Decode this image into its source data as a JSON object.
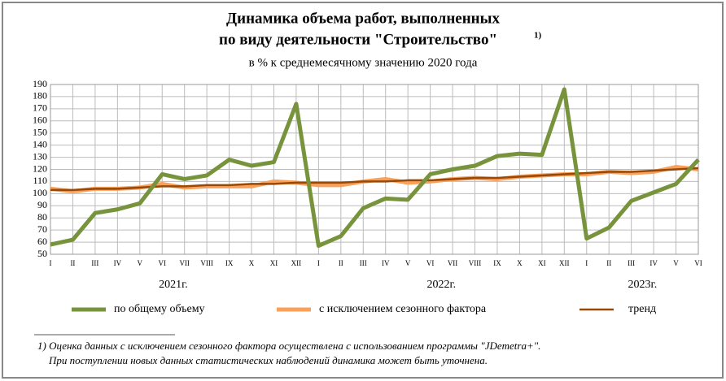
{
  "chart_data": {
    "type": "line",
    "title": [
      "Динамика объема работ, выполненных",
      "по виду деятельности \"Строительство\""
    ],
    "title_note": "1)",
    "subtitle": "в % к среднемесячному значению 2020 года",
    "categories": [
      "I",
      "II",
      "III",
      "IV",
      "V",
      "VI",
      "VII",
      "VIII",
      "IX",
      "X",
      "XI",
      "XII",
      "I",
      "II",
      "III",
      "IV",
      "V",
      "VI",
      "VII",
      "VIII",
      "IX",
      "X",
      "XI",
      "XII",
      "I",
      "II",
      "III",
      "IV",
      "V",
      "VI"
    ],
    "year_labels": [
      "2021г.",
      "2022г.",
      "2023г."
    ],
    "series": [
      {
        "name": "по общему объему",
        "color": "#77933c",
        "values": [
          58,
          62,
          84,
          87,
          92,
          116,
          112,
          115,
          128,
          123,
          126,
          174,
          57,
          65,
          88,
          96,
          95,
          116,
          120,
          123,
          131,
          133,
          132,
          186,
          63,
          72,
          94,
          101,
          108,
          128
        ]
      },
      {
        "name": "с исключением сезонного фактора",
        "color": "#f9a05b",
        "values": [
          104,
          102,
          104,
          104,
          105,
          108,
          105,
          106,
          106,
          106,
          110,
          109,
          107,
          107,
          110,
          112,
          109,
          110,
          112,
          113,
          112,
          114,
          115,
          116,
          116,
          118,
          117,
          118,
          122,
          120
        ]
      },
      {
        "name": "тренд",
        "color": "#984807",
        "values": [
          103,
          103,
          104,
          104,
          105,
          106,
          106,
          107,
          107,
          108,
          108,
          109,
          109,
          109,
          110,
          110,
          111,
          111,
          112,
          113,
          113,
          114,
          115,
          116,
          117,
          118,
          118,
          119,
          120,
          121
        ]
      }
    ],
    "ylim": [
      50,
      190
    ],
    "yticks": [
      50,
      60,
      70,
      80,
      90,
      100,
      110,
      120,
      130,
      140,
      150,
      160,
      170,
      180,
      190
    ],
    "grid": true,
    "footnote": [
      "1) Оценка данных с исключением сезонного фактора осуществлена с использованием программы \"JDemetra+\".",
      "При поступлении новых данных статистических наблюдений динамика может быть уточнена."
    ]
  }
}
